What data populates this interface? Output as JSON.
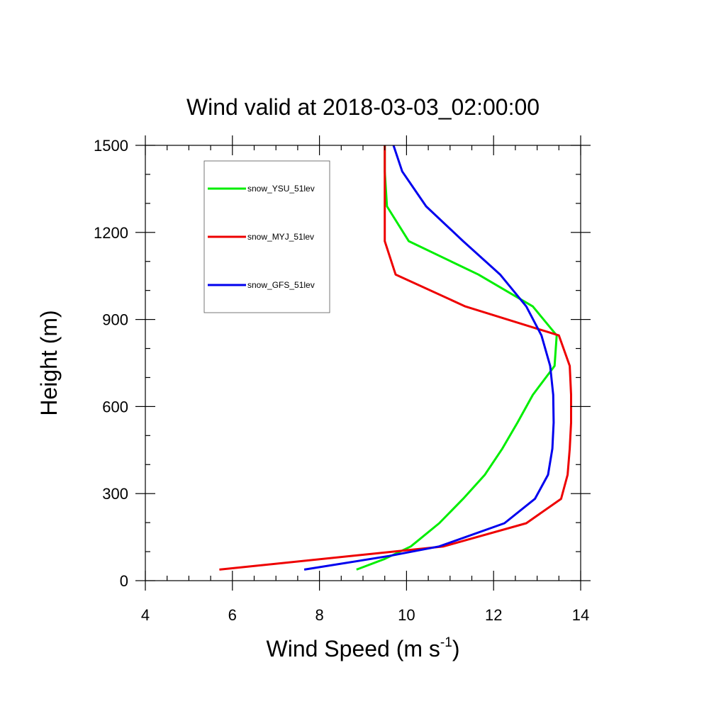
{
  "chart_data": {
    "type": "line",
    "title": "Wind valid at 2018-03-03_02:00:00",
    "xlabel": {
      "base": "Wind Speed (m s",
      "sup": "-1",
      "end": ")"
    },
    "ylabel": "Height (m)",
    "xlim": [
      4,
      14
    ],
    "ylim": [
      0,
      1500
    ],
    "x_ticks": [
      4,
      6,
      8,
      10,
      12,
      14
    ],
    "y_ticks": [
      0,
      300,
      600,
      900,
      1200,
      1500
    ],
    "x_minor_step": 0.5,
    "y_minor_step": 100,
    "grid": false,
    "legend_position": "top-left",
    "series": [
      {
        "name": "snow_YSU_51lev",
        "color": "#00ee00",
        "points": [
          [
            8.85,
            38
          ],
          [
            9.5,
            75
          ],
          [
            10.1,
            118
          ],
          [
            10.75,
            198
          ],
          [
            11.3,
            282
          ],
          [
            11.8,
            365
          ],
          [
            12.2,
            455
          ],
          [
            12.55,
            545
          ],
          [
            12.9,
            640
          ],
          [
            13.4,
            740
          ],
          [
            13.45,
            845
          ],
          [
            12.9,
            945
          ],
          [
            11.65,
            1055
          ],
          [
            10.05,
            1170
          ],
          [
            9.55,
            1290
          ],
          [
            9.5,
            1410
          ],
          [
            9.5,
            1500
          ]
        ]
      },
      {
        "name": "snow_MYJ_51lev",
        "color": "#ee0000",
        "points": [
          [
            5.7,
            38
          ],
          [
            10.85,
            118
          ],
          [
            12.75,
            198
          ],
          [
            13.55,
            282
          ],
          [
            13.7,
            365
          ],
          [
            13.75,
            455
          ],
          [
            13.78,
            545
          ],
          [
            13.78,
            640
          ],
          [
            13.75,
            740
          ],
          [
            13.5,
            845
          ],
          [
            11.35,
            945
          ],
          [
            9.75,
            1055
          ],
          [
            9.5,
            1170
          ],
          [
            9.5,
            1290
          ],
          [
            9.5,
            1410
          ],
          [
            9.5,
            1500
          ]
        ]
      },
      {
        "name": "snow_GFS_51lev",
        "color": "#0000ee",
        "points": [
          [
            7.65,
            38
          ],
          [
            9.6,
            85
          ],
          [
            10.75,
            118
          ],
          [
            12.25,
            198
          ],
          [
            12.95,
            282
          ],
          [
            13.25,
            365
          ],
          [
            13.35,
            455
          ],
          [
            13.38,
            545
          ],
          [
            13.37,
            640
          ],
          [
            13.3,
            740
          ],
          [
            13.1,
            845
          ],
          [
            12.75,
            945
          ],
          [
            12.15,
            1055
          ],
          [
            11.3,
            1170
          ],
          [
            10.45,
            1290
          ],
          [
            9.9,
            1410
          ],
          [
            9.7,
            1500
          ]
        ]
      }
    ]
  }
}
